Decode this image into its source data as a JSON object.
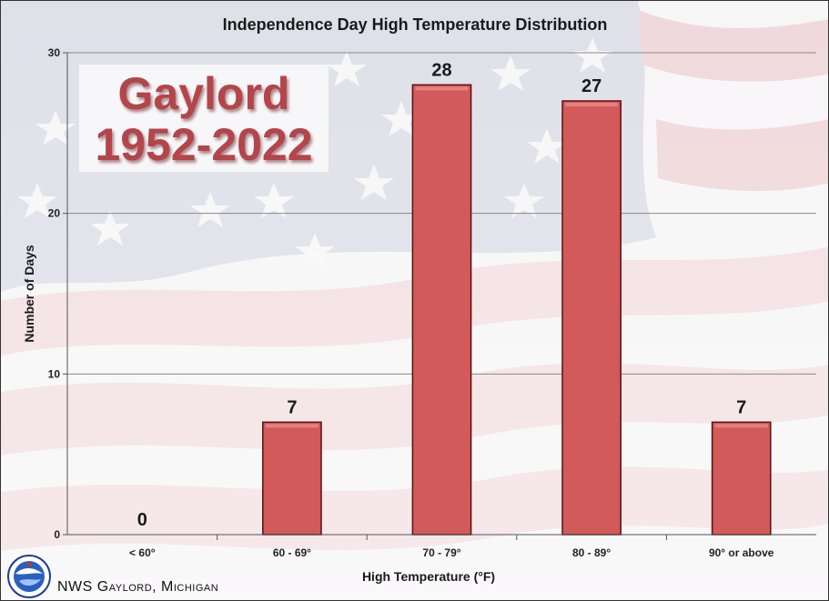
{
  "chart_data": {
    "type": "bar",
    "title": "Independence Day High Temperature Distribution",
    "xlabel": "High Temperature (°F)",
    "ylabel": "Number of Days",
    "categories": [
      "< 60°",
      "60 - 69°",
      "70 - 79°",
      "80 - 89°",
      "90° or above"
    ],
    "values": [
      0,
      7,
      28,
      27,
      7
    ],
    "ylim": [
      0,
      30
    ],
    "yticks": [
      0,
      10,
      20,
      30
    ],
    "grid": true,
    "data_labels": true
  },
  "badge": {
    "line1": "Gaylord",
    "line2": "1952-2022"
  },
  "footer": {
    "text": "NWS Gaylord, Michigan"
  },
  "colors": {
    "bar": "#d25a5a",
    "bar_outline": "#5a1010",
    "text": "#1a1a1a"
  },
  "icons": {
    "logo": "nws-logo-icon"
  }
}
